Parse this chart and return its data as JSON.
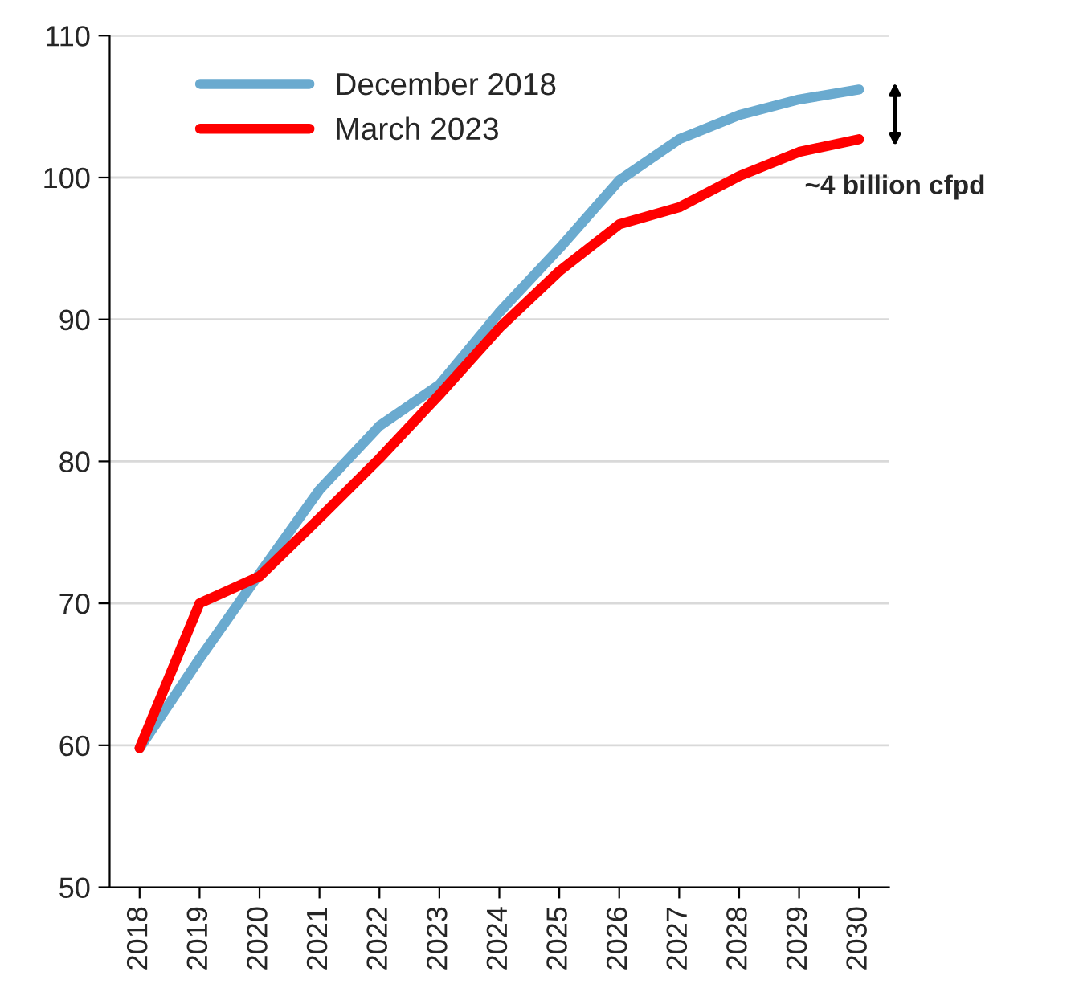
{
  "chart_data": {
    "type": "line",
    "categories": [
      "2018",
      "2019",
      "2020",
      "2021",
      "2022",
      "2023",
      "2024",
      "2025",
      "2026",
      "2027",
      "2028",
      "2029",
      "2030"
    ],
    "series": [
      {
        "name": "December 2018",
        "color": "#6aaacf",
        "values": [
          59.8,
          66.1,
          72.1,
          78.0,
          82.5,
          85.4,
          90.5,
          95.0,
          99.8,
          102.7,
          104.4,
          105.5,
          106.2
        ]
      },
      {
        "name": "March 2023",
        "color": "#ff0000",
        "values": [
          59.8,
          70.0,
          71.9,
          76.0,
          80.2,
          84.7,
          89.4,
          93.4,
          96.7,
          97.9,
          100.1,
          101.8,
          102.7
        ]
      }
    ],
    "ylim": [
      50,
      110
    ],
    "yticks": [
      50,
      60,
      70,
      80,
      90,
      100,
      110
    ],
    "grid": "y",
    "legend": "top left",
    "marker": "none",
    "line_style": "solid",
    "annotations": [
      "~4 billion cfpd"
    ]
  }
}
